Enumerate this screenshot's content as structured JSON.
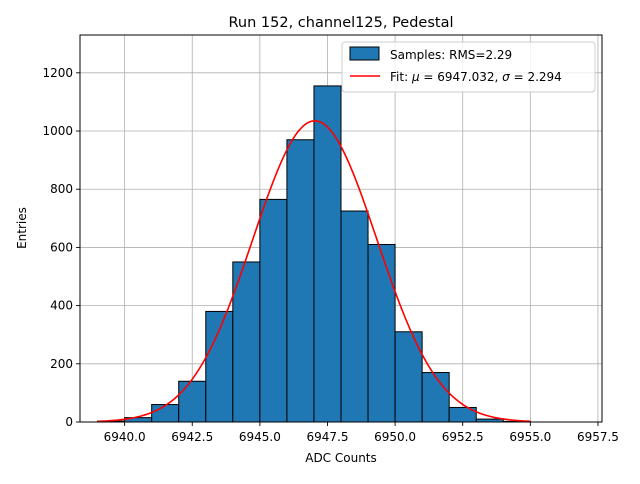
{
  "chart_data": {
    "type": "bar",
    "title": "Run 152, channel125, Pedestal",
    "xlabel": "ADC Counts",
    "ylabel": "Entries",
    "xlim": [
      6938.35,
      6957.65
    ],
    "ylim": [
      0,
      1330
    ],
    "x_ticks": [
      6940.0,
      6942.5,
      6945.0,
      6947.5,
      6950.0,
      6952.5,
      6955.0,
      6957.5
    ],
    "x_tick_labels": [
      "6940.0",
      "6942.5",
      "6945.0",
      "6947.5",
      "6950.0",
      "6952.5",
      "6955.0",
      "6957.5"
    ],
    "y_ticks": [
      0,
      200,
      400,
      600,
      800,
      1000,
      1200
    ],
    "y_tick_labels": [
      "0",
      "200",
      "400",
      "600",
      "800",
      "1000",
      "1200"
    ],
    "grid": true,
    "legend_position": "top-right",
    "histogram": {
      "name": "Samples: RMS=2.29",
      "color": "#1f77b4",
      "edge_color": "#000000",
      "bin_edges": [
        6939.0,
        6940.0,
        6941.0,
        6942.0,
        6943.0,
        6944.0,
        6945.0,
        6946.0,
        6947.0,
        6948.0,
        6949.0,
        6950.0,
        6951.0,
        6952.0,
        6953.0,
        6954.0,
        6955.0
      ],
      "counts": [
        3,
        15,
        60,
        140,
        380,
        550,
        765,
        970,
        1155,
        725,
        610,
        310,
        170,
        50,
        10,
        2
      ]
    },
    "fit": {
      "label_prefix": "Fit: ",
      "mu_symbol": "μ",
      "mu_text": " = 6947.032, ",
      "sigma_symbol": "σ",
      "sigma_text": " = 2.294",
      "color": "#ff0000",
      "mu": 6947.032,
      "sigma": 2.294,
      "amplitude": 1035,
      "x_range": [
        6939.0,
        6955.0
      ]
    }
  }
}
